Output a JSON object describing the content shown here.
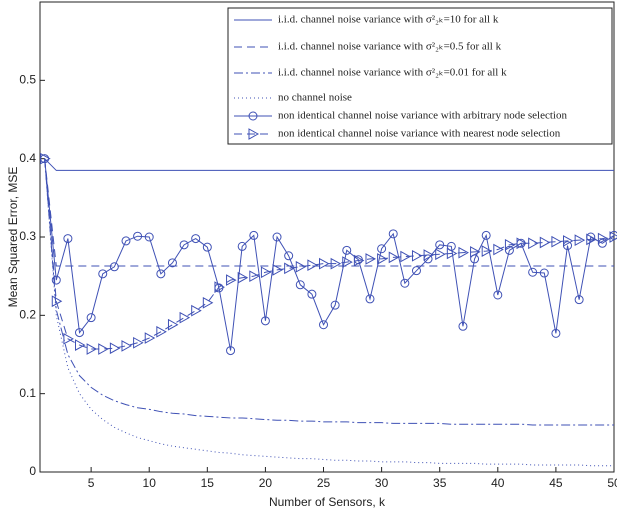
{
  "chart_data": {
    "type": "line",
    "x_label": "Number of Sensors, k",
    "y_label": "Mean Squared Error, MSE",
    "xlim": [
      0.6,
      50
    ],
    "ylim": [
      0,
      0.6
    ],
    "xticks": [
      5,
      10,
      15,
      20,
      25,
      30,
      35,
      40,
      45,
      50
    ],
    "yticks": [
      0,
      0.1,
      0.2,
      0.3,
      0.4,
      0.5
    ],
    "legend": "upper right",
    "x": [
      1,
      2,
      3,
      4,
      5,
      6,
      7,
      8,
      9,
      10,
      11,
      12,
      13,
      14,
      15,
      16,
      17,
      18,
      19,
      20,
      21,
      22,
      23,
      24,
      25,
      26,
      27,
      28,
      29,
      30,
      31,
      32,
      33,
      34,
      35,
      36,
      37,
      38,
      39,
      40,
      41,
      42,
      43,
      44,
      45,
      46,
      47,
      48,
      49,
      50
    ],
    "series": [
      {
        "name": "i.i.d. channel noise variance with σ²₂ₖ=10 for all k",
        "color": "#3f51b5",
        "style": "solid",
        "marker": "none",
        "values": [
          0.4,
          0.385,
          0.385,
          0.385,
          0.385,
          0.385,
          0.385,
          0.385,
          0.385,
          0.385,
          0.385,
          0.385,
          0.385,
          0.385,
          0.385,
          0.385,
          0.385,
          0.385,
          0.385,
          0.385,
          0.385,
          0.385,
          0.385,
          0.385,
          0.385,
          0.385,
          0.385,
          0.385,
          0.385,
          0.385,
          0.385,
          0.385,
          0.385,
          0.385,
          0.385,
          0.385,
          0.385,
          0.385,
          0.385,
          0.385,
          0.385,
          0.385,
          0.385,
          0.385,
          0.385,
          0.385,
          0.385,
          0.385,
          0.385,
          0.385
        ]
      },
      {
        "name": "i.i.d. channel noise variance with σ²₂ₖ=0.5 for all k",
        "color": "#3f51b5",
        "style": "dashed",
        "marker": "none",
        "values": [
          0.4,
          0.263,
          0.263,
          0.263,
          0.263,
          0.263,
          0.263,
          0.263,
          0.263,
          0.263,
          0.263,
          0.263,
          0.263,
          0.263,
          0.263,
          0.263,
          0.263,
          0.263,
          0.263,
          0.263,
          0.263,
          0.263,
          0.263,
          0.263,
          0.263,
          0.263,
          0.263,
          0.263,
          0.263,
          0.263,
          0.263,
          0.263,
          0.263,
          0.263,
          0.263,
          0.263,
          0.263,
          0.263,
          0.263,
          0.263,
          0.263,
          0.263,
          0.263,
          0.263,
          0.263,
          0.263,
          0.263,
          0.263,
          0.263,
          0.263
        ]
      },
      {
        "name": "i.i.d. channel noise variance with σ²₂ₖ=0.01 for all k",
        "color": "#3f51b5",
        "style": "dashdot",
        "marker": "none",
        "values": [
          0.4,
          0.207,
          0.15,
          0.123,
          0.108,
          0.098,
          0.091,
          0.086,
          0.082,
          0.08,
          0.077,
          0.075,
          0.074,
          0.072,
          0.071,
          0.07,
          0.069,
          0.069,
          0.068,
          0.067,
          0.066,
          0.066,
          0.065,
          0.065,
          0.064,
          0.064,
          0.064,
          0.063,
          0.063,
          0.063,
          0.062,
          0.062,
          0.062,
          0.062,
          0.062,
          0.061,
          0.061,
          0.061,
          0.061,
          0.061,
          0.061,
          0.061,
          0.06,
          0.06,
          0.06,
          0.06,
          0.06,
          0.06,
          0.06,
          0.06
        ]
      },
      {
        "name": "no channel noise",
        "color": "#3f51b5",
        "style": "dotted",
        "marker": "none",
        "values": [
          0.4,
          0.2,
          0.133,
          0.1,
          0.08,
          0.067,
          0.057,
          0.05,
          0.044,
          0.04,
          0.036,
          0.033,
          0.031,
          0.029,
          0.027,
          0.025,
          0.024,
          0.022,
          0.021,
          0.02,
          0.019,
          0.018,
          0.017,
          0.017,
          0.016,
          0.015,
          0.015,
          0.014,
          0.014,
          0.013,
          0.013,
          0.013,
          0.012,
          0.012,
          0.011,
          0.011,
          0.011,
          0.011,
          0.01,
          0.01,
          0.01,
          0.01,
          0.009,
          0.009,
          0.009,
          0.009,
          0.009,
          0.008,
          0.008,
          0.008
        ]
      },
      {
        "name": "non identical channel noise variance with arbitrary node selection",
        "color": "#3f51b5",
        "style": "solid",
        "marker": "circle",
        "values": [
          0.4,
          0.245,
          0.298,
          0.178,
          0.197,
          0.253,
          0.262,
          0.295,
          0.301,
          0.3,
          0.253,
          0.267,
          0.29,
          0.298,
          0.287,
          0.235,
          0.155,
          0.288,
          0.302,
          0.193,
          0.3,
          0.276,
          0.239,
          0.227,
          0.188,
          0.213,
          0.283,
          0.271,
          0.221,
          0.285,
          0.304,
          0.241,
          0.257,
          0.272,
          0.29,
          0.288,
          0.186,
          0.272,
          0.302,
          0.226,
          0.283,
          0.292,
          0.255,
          0.254,
          0.177,
          0.289,
          0.22,
          0.3,
          0.292,
          0.302
        ]
      },
      {
        "name": "non identical channel noise variance with nearest node selection",
        "color": "#3f51b5",
        "style": "dashed",
        "marker": "triangle-right",
        "values": [
          0.4,
          0.218,
          0.17,
          0.162,
          0.157,
          0.157,
          0.158,
          0.161,
          0.165,
          0.171,
          0.179,
          0.188,
          0.197,
          0.206,
          0.216,
          0.236,
          0.245,
          0.248,
          0.25,
          0.255,
          0.258,
          0.26,
          0.262,
          0.264,
          0.266,
          0.266,
          0.268,
          0.27,
          0.272,
          0.272,
          0.274,
          0.275,
          0.276,
          0.277,
          0.278,
          0.279,
          0.28,
          0.281,
          0.282,
          0.284,
          0.29,
          0.292,
          0.292,
          0.293,
          0.294,
          0.295,
          0.296,
          0.297,
          0.298,
          0.3
        ]
      }
    ]
  }
}
